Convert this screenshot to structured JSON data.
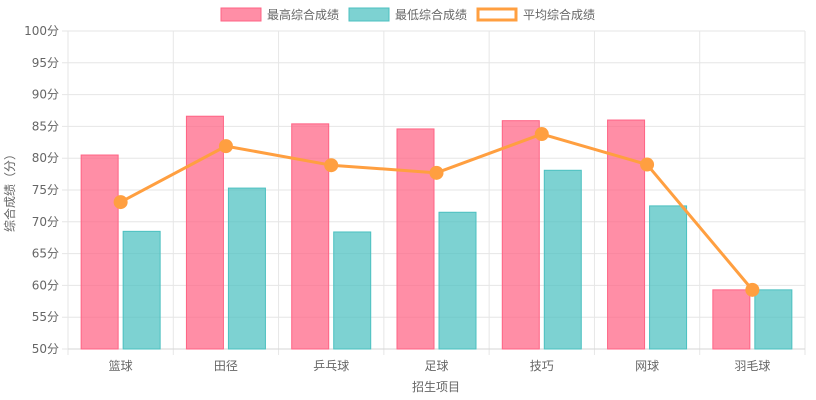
{
  "colors": {
    "max_fill": "rgba(255, 99, 132, 0.72)",
    "max_stroke": "#ff6384",
    "min_fill": "rgba(75, 192, 192, 0.72)",
    "min_stroke": "#4bc0c0",
    "avg_line": "#ff9f40",
    "grid": "#e6e6e6",
    "axis_text": "#666666"
  },
  "chart_data": {
    "type": "bar",
    "categories": [
      "篮球",
      "田径",
      "乒乓球",
      "足球",
      "技巧",
      "网球",
      "羽毛球"
    ],
    "series": [
      {
        "name": "最高综合成绩",
        "type": "bar",
        "values": [
          80.5,
          86.6,
          85.4,
          84.6,
          85.9,
          86.0,
          59.3
        ]
      },
      {
        "name": "最低综合成绩",
        "type": "bar",
        "values": [
          68.5,
          75.3,
          68.4,
          71.5,
          78.1,
          72.5,
          59.3
        ]
      },
      {
        "name": "平均综合成绩",
        "type": "line",
        "values": [
          73.1,
          81.9,
          78.9,
          77.7,
          83.8,
          79.0,
          59.3
        ]
      }
    ],
    "xlabel": "招生项目",
    "ylabel": "综合成绩（分）",
    "ylim": [
      50,
      100
    ],
    "y_step": 5,
    "y_tick_suffix": "分",
    "y_ticks": [
      "100分",
      "95分",
      "90分",
      "85分",
      "80分",
      "75分",
      "70分",
      "65分",
      "60分",
      "55分",
      "50分"
    ],
    "grid": true,
    "legend_position": "top-center"
  }
}
